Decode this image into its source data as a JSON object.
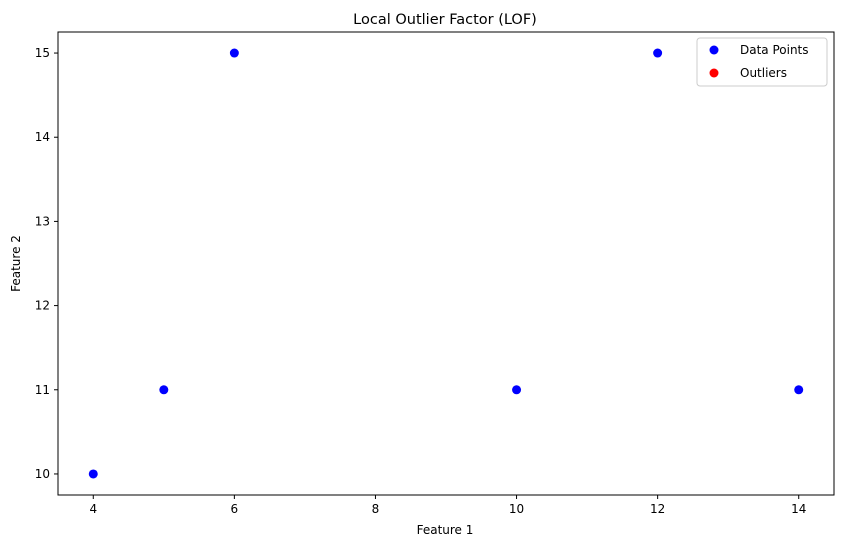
{
  "chart_data": {
    "type": "scatter",
    "title": "Local Outlier Factor (LOF)",
    "xlabel": "Feature 1",
    "ylabel": "Feature 2",
    "xlim": [
      3.5,
      14.5
    ],
    "ylim": [
      9.75,
      15.25
    ],
    "xticks": [
      4,
      6,
      8,
      10,
      12,
      14
    ],
    "yticks": [
      10,
      11,
      12,
      13,
      14,
      15
    ],
    "grid": false,
    "legend_position": "top-right",
    "series": [
      {
        "name": "Data Points",
        "color": "#0000ff",
        "points": [
          {
            "x": 4,
            "y": 10
          },
          {
            "x": 5,
            "y": 11
          },
          {
            "x": 6,
            "y": 15
          },
          {
            "x": 10,
            "y": 11
          },
          {
            "x": 12,
            "y": 15
          },
          {
            "x": 14,
            "y": 11
          }
        ]
      },
      {
        "name": "Outliers",
        "color": "#ff0000",
        "points": []
      }
    ]
  }
}
